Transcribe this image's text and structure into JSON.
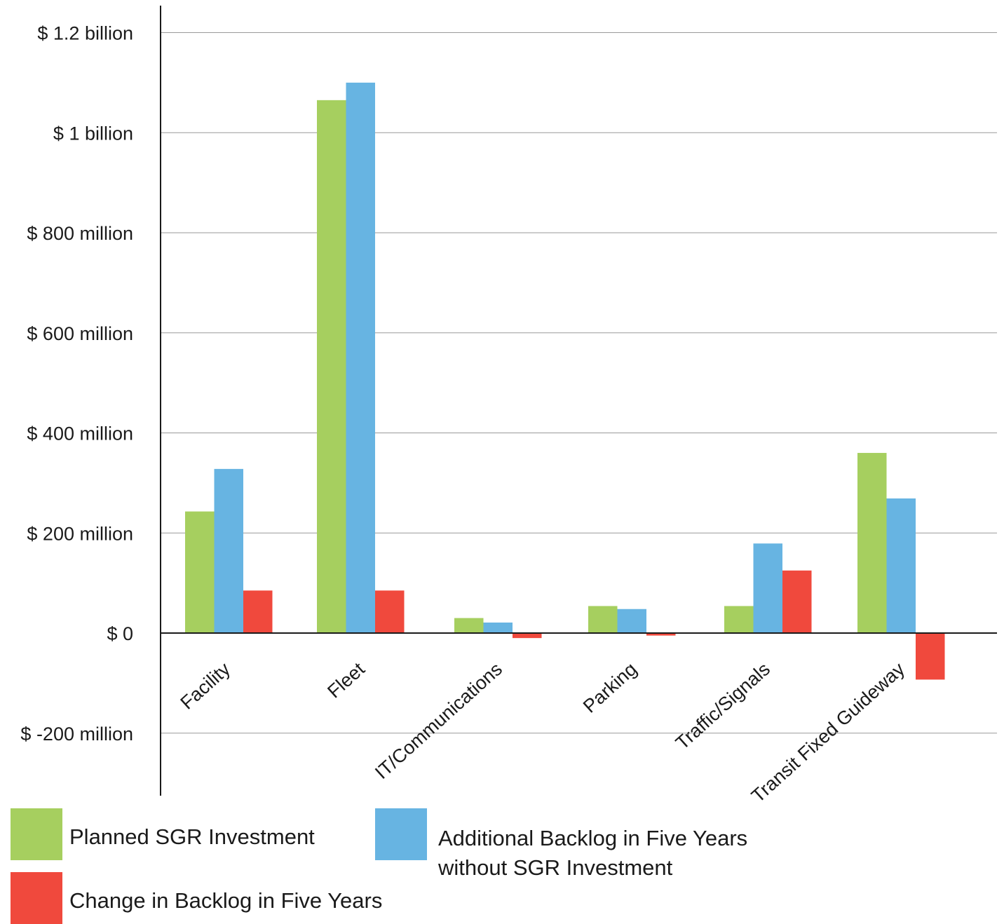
{
  "chart_data": {
    "type": "bar",
    "title": "",
    "xlabel": "",
    "ylabel": "",
    "categories": [
      "Facility",
      "Fleet",
      "IT/Communications",
      "Parking",
      "Traffic/Signals",
      "Transit Fixed Guideway"
    ],
    "series": [
      {
        "name": "Planned SGR Investment",
        "color": "#a6cf5f",
        "values": [
          243,
          1065,
          30,
          54,
          54,
          360
        ]
      },
      {
        "name": "Additional Backlog in Five Years without SGR Investment",
        "color": "#67b4e2",
        "values": [
          328,
          1100,
          21,
          48,
          179,
          269
        ]
      },
      {
        "name": "Change in Backlog in Five Years",
        "color": "#f0493d",
        "values": [
          85,
          85,
          -10,
          -5,
          125,
          -93
        ]
      }
    ],
    "ylim": [
      -300,
      1260
    ],
    "yticks": [
      {
        "value": 1200,
        "label": "$ 1.2 billion"
      },
      {
        "value": 1000,
        "label": "$ 1 billion"
      },
      {
        "value": 800,
        "label": "$ 800 million"
      },
      {
        "value": 600,
        "label": "$ 600 million"
      },
      {
        "value": 400,
        "label": "$ 400 million"
      },
      {
        "value": 200,
        "label": "$ 200 million"
      },
      {
        "value": 0,
        "label": "$  0"
      },
      {
        "value": -200,
        "label": "$ -200 million"
      }
    ],
    "grid": true,
    "legend_position": "bottom"
  },
  "legend": [
    {
      "lines": [
        "Planned SGR Investment"
      ],
      "color": "#a6cf5f"
    },
    {
      "lines": [
        "Additional Backlog in Five Years",
        "without SGR Investment"
      ],
      "color": "#67b4e2"
    },
    {
      "lines": [
        "Change in Backlog in Five Years"
      ],
      "color": "#f0493d"
    }
  ]
}
